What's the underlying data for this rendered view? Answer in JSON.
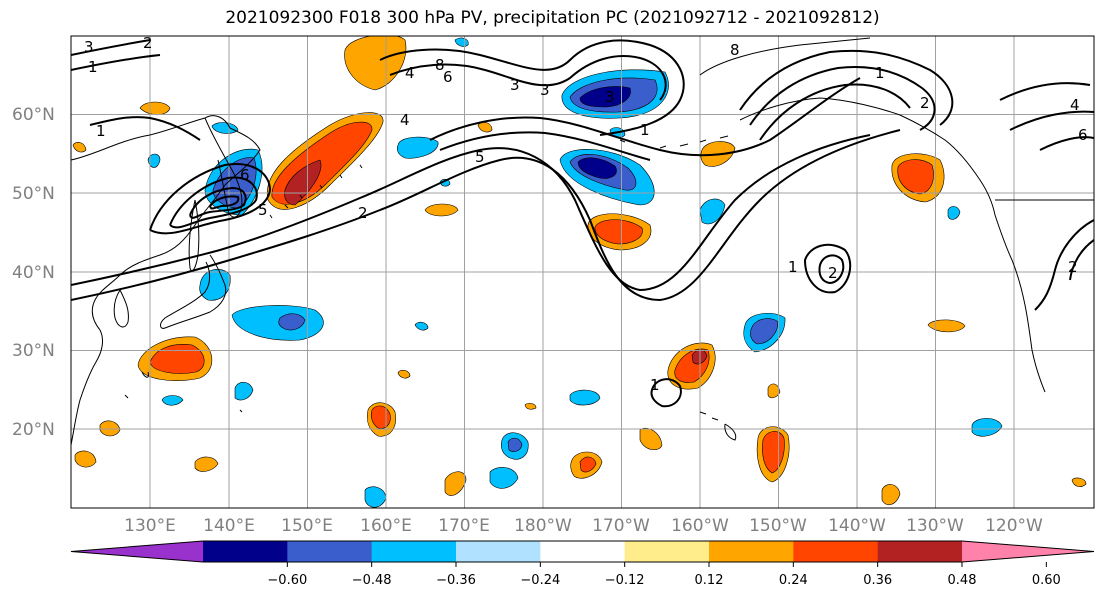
{
  "title": "2021092300 F018 300 hPa PV, precipitation PC (2021092712 - 2021092812)",
  "map": {
    "lat_labels": [
      "60°N",
      "50°N",
      "40°N",
      "30°N",
      "20°N"
    ],
    "lon_labels": [
      "130°E",
      "140°E",
      "150°E",
      "160°E",
      "170°E",
      "180°W",
      "170°W",
      "160°W",
      "150°W",
      "140°W",
      "130°W",
      "120°W"
    ],
    "pv_contour_labels": [
      "3",
      "2",
      "1",
      "1",
      "8",
      "4",
      "6",
      "5",
      "3",
      "2",
      "1",
      "6",
      "5",
      "4",
      "3",
      "2",
      "1",
      "2",
      "1",
      "2",
      "1",
      "3",
      "4",
      "6",
      "8"
    ]
  },
  "colorbar": {
    "tick_labels": [
      "−0.60",
      "−0.48",
      "−0.36",
      "−0.24",
      "−0.12",
      "0.12",
      "0.24",
      "0.36",
      "0.48",
      "0.60"
    ],
    "colors": [
      "#9932cc",
      "#00008b",
      "#3a5fcd",
      "#00bfff",
      "#b0e2ff",
      "#ffffff",
      "#ffec8b",
      "#ffa500",
      "#ff4500",
      "#b22222",
      "#ff82ab"
    ]
  },
  "colors": {
    "grid": "#a0a0a0",
    "coast": "#000000",
    "label": "#808080"
  }
}
